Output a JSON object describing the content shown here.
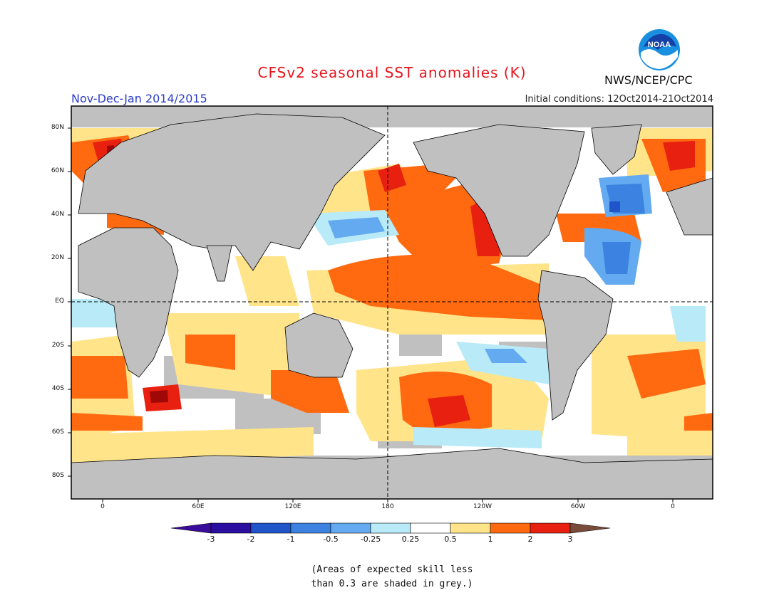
{
  "title": "CFSv2 seasonal SST anomalies (K)",
  "period": "Nov-Dec-Jan 2014/2015",
  "initial_conditions": "Initial conditions: 12Oct2014-21Oct2014",
  "agency": "NWS/NCEP/CPC",
  "logo_text": "NOAA",
  "note_line1": "(Areas of expected skill less",
  "note_line2": "than 0.3 are shaded in grey.)",
  "lat_labels": [
    "80N",
    "60N",
    "40N",
    "20N",
    "EQ",
    "20S",
    "40S",
    "60S",
    "80S"
  ],
  "lon_labels": [
    "0",
    "60E",
    "120E",
    "180",
    "120W",
    "60W",
    "0"
  ],
  "colorbar": {
    "labels": [
      "-3",
      "-2",
      "-1",
      "-0.5",
      "-0.25",
      "0.25",
      "0.5",
      "1",
      "2",
      "3"
    ],
    "colors": [
      "#2a0ea0",
      "#1f55c8",
      "#3c82e0",
      "#63aaf0",
      "#b8eaf8",
      "#ffffff",
      "#ffe48a",
      "#ff6a10",
      "#e82010",
      "#a00808"
    ],
    "under_color": "#3a0c9c",
    "over_color": "#7a4a3a"
  },
  "colors": {
    "land": "#c0c0c0",
    "skill_grey": "#c0c0c0",
    "title": "#e8141c",
    "period": "#2a3cc8"
  }
}
